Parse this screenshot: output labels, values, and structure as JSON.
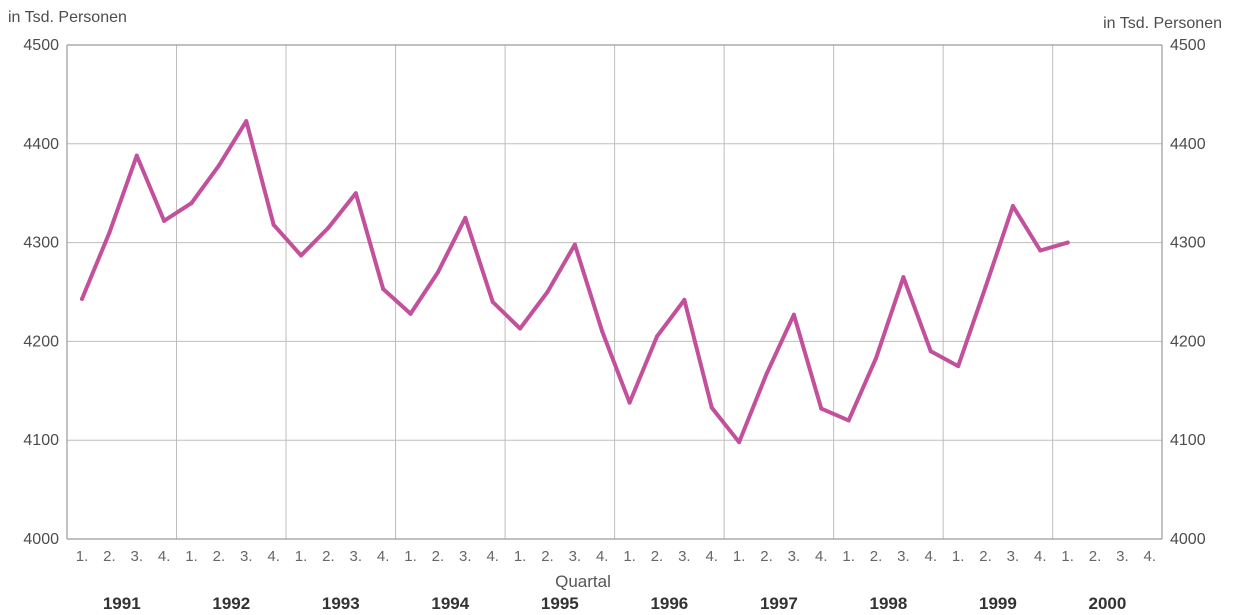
{
  "chart_data": {
    "type": "line",
    "ylabel_left": "in Tsd. Personen",
    "ylabel_right": "in Tsd. Personen",
    "xlabel": "Quartal",
    "ylim": [
      4000,
      4500
    ],
    "yticks": [
      "4000",
      "4100",
      "4200",
      "4300",
      "4400",
      "4500"
    ],
    "quarter_labels": [
      "1.",
      "2.",
      "3.",
      "4."
    ],
    "years": [
      "1991",
      "1992",
      "1993",
      "1994",
      "1995",
      "1996",
      "1997",
      "1998",
      "1999",
      "2000"
    ],
    "grid": true,
    "series_color": "#c2509b",
    "series": [
      {
        "values": [
          4243,
          4310,
          4388,
          4322,
          4340,
          4378,
          4423,
          4318,
          4287,
          4315,
          4350,
          4253,
          4228,
          4270,
          4325,
          4240,
          4213,
          4250,
          4298,
          4210,
          4138,
          4205,
          4242,
          4133,
          4098,
          4167,
          4227,
          4132,
          4120,
          4183,
          4265,
          4190,
          4175,
          4255,
          4337,
          4292,
          4300
        ]
      }
    ]
  }
}
